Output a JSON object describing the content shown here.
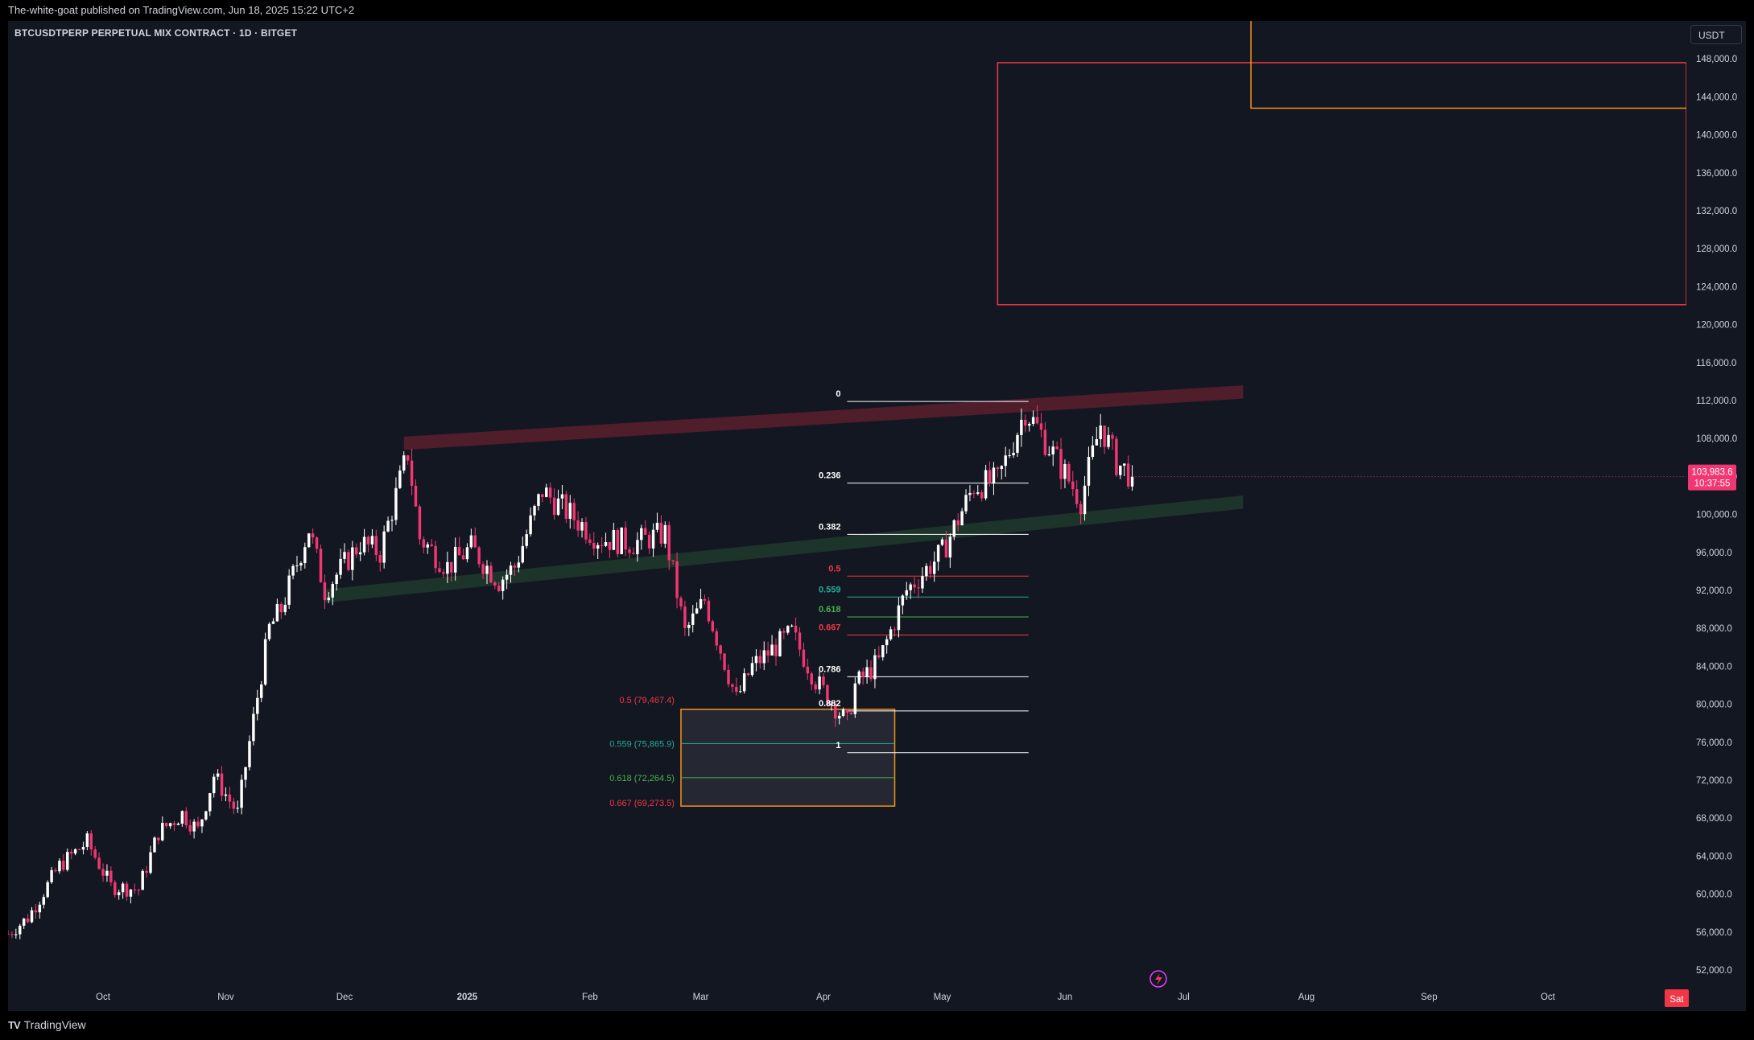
{
  "header": {
    "published": "The-white-goat published on TradingView.com, Jun 18, 2025 15:22 UTC+2"
  },
  "symbol": "BTCUSDTPERP PERPETUAL MIX CONTRACT · 1D · BITGET",
  "currency_button": "USDT",
  "footer": {
    "logo_text": "TradingView",
    "logo_mark": "TV"
  },
  "colors": {
    "background": "#131722",
    "up": "#ffffff",
    "down": "#f23671",
    "fib_zone": "#f7931a",
    "target_box": "#f23645",
    "resistance_channel": "#5c1f2b",
    "support_channel": "#1e3a2a"
  },
  "chart_data": {
    "type": "candlestick",
    "timeframe": "1D",
    "ylim": [
      50000,
      152000
    ],
    "y_ticks": [
      "148,000.0",
      "144,000.0",
      "140,000.0",
      "136,000.0",
      "132,000.0",
      "128,000.0",
      "124,000.0",
      "120,000.0",
      "116,000.0",
      "112,000.0",
      "108,000.0",
      "104,000.0",
      "100,000.0",
      "96,000.0",
      "92,000.0",
      "88,000.0",
      "84,000.0",
      "80,000.0",
      "76,000.0",
      "72,000.0",
      "68,000.0",
      "64,000.0",
      "60,000.0",
      "56,000.0",
      "52,000.0"
    ],
    "x_ticks": [
      "Oct",
      "Nov",
      "Dec",
      "2025",
      "Feb",
      "Mar",
      "Apr",
      "May",
      "Jun",
      "Jul",
      "Aug",
      "Sep",
      "Oct"
    ],
    "x_tick_dates": [
      "2024-10-01",
      "2024-11-01",
      "2024-12-01",
      "2025-01-01",
      "2025-02-01",
      "2025-03-01",
      "2025-04-01",
      "2025-05-01",
      "2025-06-01",
      "2025-07-01",
      "2025-08-01",
      "2025-09-01",
      "2025-10-01"
    ],
    "x_range": [
      "2024-09-07",
      "2025-11-05"
    ],
    "current_price": {
      "value": 103983.6,
      "label": "103,983.6",
      "countdown": "10:37:55"
    },
    "sat_label": "Sat",
    "ohlc_anchors": [
      [
        "2024-09-07",
        55800
      ],
      [
        "2024-09-12",
        57500
      ],
      [
        "2024-09-20",
        63000
      ],
      [
        "2024-09-27",
        65500
      ],
      [
        "2024-10-03",
        60800
      ],
      [
        "2024-10-10",
        60500
      ],
      [
        "2024-10-15",
        66500
      ],
      [
        "2024-10-21",
        68500
      ],
      [
        "2024-10-25",
        66700
      ],
      [
        "2024-10-29",
        72500
      ],
      [
        "2024-11-04",
        68500
      ],
      [
        "2024-11-07",
        76000
      ],
      [
        "2024-11-12",
        88000
      ],
      [
        "2024-11-15",
        90000
      ],
      [
        "2024-11-22",
        98500
      ],
      [
        "2024-11-26",
        92000
      ],
      [
        "2024-12-05",
        97000
      ],
      [
        "2024-12-10",
        96000
      ],
      [
        "2024-12-17",
        106500
      ],
      [
        "2024-12-20",
        97500
      ],
      [
        "2024-12-27",
        94500
      ],
      [
        "2025-01-02",
        96500
      ],
      [
        "2025-01-09",
        93000
      ],
      [
        "2025-01-13",
        94500
      ],
      [
        "2025-01-20",
        102500
      ],
      [
        "2025-01-27",
        100000
      ],
      [
        "2025-02-03",
        97500
      ],
      [
        "2025-02-12",
        97000
      ],
      [
        "2025-02-20",
        98000
      ],
      [
        "2025-02-25",
        87500
      ],
      [
        "2025-03-02",
        91000
      ],
      [
        "2025-03-10",
        80500
      ],
      [
        "2025-03-14",
        84000
      ],
      [
        "2025-03-24",
        87500
      ],
      [
        "2025-03-30",
        82500
      ],
      [
        "2025-04-07",
        78000
      ],
      [
        "2025-04-09",
        82000
      ],
      [
        "2025-04-15",
        84500
      ],
      [
        "2025-04-22",
        92000
      ],
      [
        "2025-05-01",
        96000
      ],
      [
        "2025-05-09",
        103000
      ],
      [
        "2025-05-15",
        103500
      ],
      [
        "2025-05-22",
        111000
      ],
      [
        "2025-05-26",
        108500
      ],
      [
        "2025-06-05",
        101500
      ],
      [
        "2025-06-10",
        109500
      ],
      [
        "2025-06-14",
        105500
      ],
      [
        "2025-06-18",
        103983.6
      ]
    ],
    "fib_retracement": {
      "start": "2025-04-07",
      "end": "2025-05-22",
      "levels": [
        {
          "label": "0",
          "price": 111900,
          "color": "#ffffff"
        },
        {
          "label": "0.236",
          "price": 103300,
          "color": "#ffffff"
        },
        {
          "label": "0.382",
          "price": 97900,
          "color": "#ffffff"
        },
        {
          "label": "0.5",
          "price": 93500,
          "color": "#f23645"
        },
        {
          "label": "0.559",
          "price": 91300,
          "color": "#22ab94"
        },
        {
          "label": "0.618",
          "price": 89200,
          "color": "#4caf50"
        },
        {
          "label": "0.667",
          "price": 87300,
          "color": "#f23645"
        },
        {
          "label": "0.786",
          "price": 82900,
          "color": "#ffffff"
        },
        {
          "label": "0.882",
          "price": 79300,
          "color": "#ffffff"
        },
        {
          "label": "1",
          "price": 74900,
          "color": "#ffffff"
        }
      ]
    },
    "zone_levels": [
      {
        "label": "0.5 (79,467.4)",
        "price": 79467.4,
        "color": "#f23645"
      },
      {
        "label": "0.559 (75,865.9)",
        "price": 75865.9,
        "color": "#22ab94"
      },
      {
        "label": "0.618 (72,264.5)",
        "price": 72264.5,
        "color": "#4caf50"
      },
      {
        "label": "0.667 (69,273.5)",
        "price": 69273.5,
        "color": "#f23645"
      }
    ],
    "zone_box": {
      "start": "2025-02-24",
      "end": "2025-04-19",
      "top": 79467.4,
      "bottom": 69273.5
    },
    "target_box": {
      "start": "2025-05-15",
      "end": "2025-11-05",
      "top": 147600,
      "bottom": 122100
    },
    "orange_target": {
      "x": "2025-07-18",
      "top": 152000,
      "price": 142800,
      "end": "2025-11-05"
    },
    "resistance_channel": {
      "start": [
        "2024-12-16",
        107500
      ],
      "end": [
        "2025-07-16",
        112900
      ],
      "width": 1400
    },
    "support_channel": {
      "start": [
        "2024-11-26",
        91400
      ],
      "end": [
        "2025-07-16",
        101300
      ],
      "width": 1400
    }
  }
}
